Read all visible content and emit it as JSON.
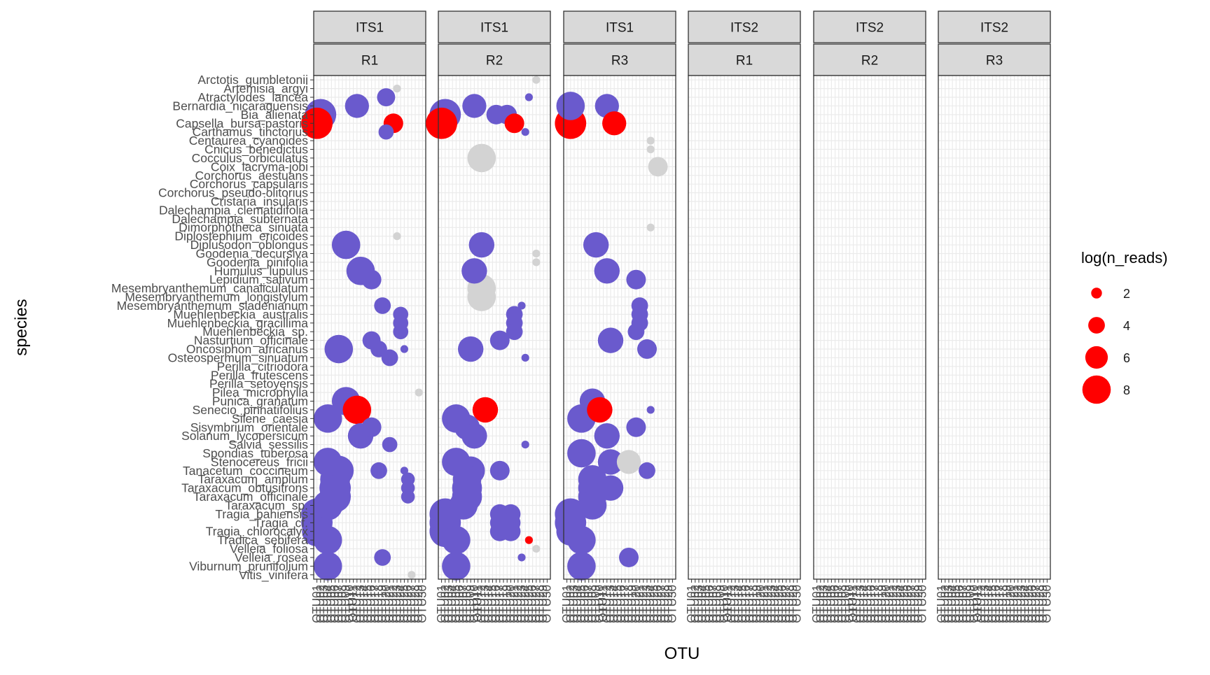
{
  "chart_data": {
    "type": "scatter",
    "xlabel": "OTU",
    "ylabel": "species",
    "legend": {
      "title": "log(n_reads)",
      "position": "right",
      "entries": [
        "2",
        "4",
        "6",
        "8"
      ],
      "values": [
        2,
        4,
        6,
        8
      ]
    },
    "grid": true,
    "colors": {
      "base": "#6a5acd",
      "highlight": "#ff0000",
      "faded": "#d3d3d3",
      "strip_fill": "#d9d9d9",
      "grid": "#ebebeb"
    },
    "facet_rows": [
      "ITS1",
      "ITS1",
      "ITS1",
      "ITS2",
      "ITS2",
      "ITS2"
    ],
    "facet_cols": [
      "R1",
      "R2",
      "R3",
      "R1",
      "R2",
      "R3"
    ],
    "species": [
      "Arctotis_gumbletonii",
      "Artemisia_argyi",
      "Atractylodes_lancea",
      "Bernardia_nicaraguensis",
      "Bia_alienata",
      "Capsella_bursa-pastoris",
      "Carthamus_tinctorius",
      "Centaurea_cyanoides",
      "Cnicus_benedictus",
      "Cocculus_orbiculatus",
      "Coix_lacryma-jobi",
      "Corchorus_aestuans",
      "Corchorus_capsularis",
      "Corchorus_pseudo-olitorius",
      "Cristaria_insularis",
      "Dalechampia_clematidifolia",
      "Dalechampia_subternata",
      "Dimorphotheca_sinuata",
      "Diplostephium_ericoides",
      "Diplusodon_oblongus",
      "Goodenia_decursiva",
      "Goodenia_pinifolia",
      "Humulus_lupulus",
      "Lepidium_sativum",
      "Mesembryanthemum_canaliculatum",
      "Mesembryanthemum_longistylum",
      "Mesembryanthemum_sladenianum",
      "Muehlenbeckia_australis",
      "Muehlenbeckia_gracillima",
      "Muehlenbeckia_sp.",
      "Nasturtium_officinale",
      "Oncosiphon_africanus",
      "Osteospermum_sinuatum",
      "Perilla_citriodora",
      "Perilla_frutescens",
      "Perilla_setoyensis",
      "Pilea_microphylla",
      "Punica_granatum",
      "Senecio_pinnatifolius",
      "Silene_caesia",
      "Sisymbrium_orientale",
      "Solanum_lycopersicum",
      "Salvia_sessilis",
      "Spondias_tuberosa",
      "Stenocereus_fricii",
      "Tanacetum_coccineum",
      "Taraxacum_amplum",
      "Taraxacum_obtusifrons",
      "Taraxacum_officinale",
      "Taraxacum_sp.",
      "Tragia_bahiensis",
      "Tragia_cf.",
      "Tragia_chlorocalyx",
      "Tradica_sebifera",
      "Velleia_foliosa",
      "Velleia_rosea",
      "Viburnum_prunifolium",
      "Vitis_vinifera"
    ],
    "otus": [
      "OTU01",
      "OTU02",
      "OTU03",
      "OTU04",
      "OTU05",
      "OTU06",
      "OTU07",
      "OTU08",
      "OTU09",
      "OTU10",
      "OTU11",
      "OTU12",
      "OTU13",
      "OTU14",
      "OTU15",
      "OTU16",
      "OTU17",
      "OTU18",
      "OTU19",
      "OTU20",
      "OTU21",
      "OTU22",
      "OTU23",
      "OTU24",
      "OTU25",
      "OTU26",
      "OTU27",
      "OTU28",
      "OTU29",
      "OTU30"
    ],
    "points_note": "each point: [species_index, otu_index(0-based), log_n_reads, color_class]",
    "panels": [
      {
        "points": [
          [
            1,
            22,
            1,
            "faded"
          ],
          [
            2,
            19,
            4.5,
            "base"
          ],
          [
            3,
            11,
            6.5,
            "base"
          ],
          [
            4,
            1,
            9,
            "base"
          ],
          [
            5,
            0,
            9,
            "highlight"
          ],
          [
            5,
            21,
            5,
            "highlight"
          ],
          [
            6,
            19,
            3.5,
            "base"
          ],
          [
            18,
            22,
            1,
            "faded"
          ],
          [
            19,
            8,
            8,
            "base"
          ],
          [
            22,
            12,
            8,
            "base"
          ],
          [
            23,
            15,
            5,
            "base"
          ],
          [
            26,
            18,
            4,
            "base"
          ],
          [
            27,
            23,
            3.5,
            "base"
          ],
          [
            28,
            23,
            3.5,
            "base"
          ],
          [
            29,
            23,
            3.5,
            "base"
          ],
          [
            30,
            15,
            4.5,
            "base"
          ],
          [
            31,
            6,
            8,
            "base"
          ],
          [
            31,
            17,
            4,
            "base"
          ],
          [
            31,
            24,
            1,
            "base"
          ],
          [
            32,
            20,
            4,
            "base"
          ],
          [
            36,
            28,
            1,
            "faded"
          ],
          [
            37,
            8,
            8,
            "base"
          ],
          [
            38,
            11,
            8,
            "highlight"
          ],
          [
            39,
            3,
            8,
            "base"
          ],
          [
            40,
            15,
            5,
            "base"
          ],
          [
            41,
            12,
            7,
            "base"
          ],
          [
            42,
            20,
            3.5,
            "base"
          ],
          [
            44,
            3,
            8,
            "base"
          ],
          [
            45,
            6,
            8.5,
            "base"
          ],
          [
            45,
            17,
            4,
            "base"
          ],
          [
            45,
            24,
            1,
            "base"
          ],
          [
            46,
            5,
            8.5,
            "base"
          ],
          [
            46,
            25,
            3,
            "base"
          ],
          [
            47,
            5,
            9,
            "base"
          ],
          [
            47,
            25,
            3,
            "base"
          ],
          [
            48,
            5,
            9,
            "base"
          ],
          [
            48,
            25,
            3,
            "base"
          ],
          [
            49,
            3,
            8.5,
            "base"
          ],
          [
            50,
            0,
            9,
            "base"
          ],
          [
            51,
            0,
            9,
            "base"
          ],
          [
            52,
            0,
            8.5,
            "base"
          ],
          [
            53,
            3,
            8,
            "base"
          ],
          [
            55,
            18,
            4,
            "base"
          ],
          [
            56,
            3,
            8,
            "base"
          ],
          [
            57,
            26,
            1,
            "faded"
          ]
        ]
      },
      {
        "points": [
          [
            0,
            26,
            1,
            "faded"
          ],
          [
            2,
            24,
            1,
            "base"
          ],
          [
            3,
            9,
            6.5,
            "base"
          ],
          [
            4,
            1,
            9,
            "base"
          ],
          [
            4,
            15,
            5,
            "base"
          ],
          [
            4,
            18,
            5,
            "base"
          ],
          [
            5,
            0,
            9,
            "highlight"
          ],
          [
            5,
            20,
            5,
            "highlight"
          ],
          [
            6,
            23,
            1,
            "base"
          ],
          [
            9,
            11,
            8,
            "faded"
          ],
          [
            19,
            11,
            7,
            "base"
          ],
          [
            20,
            26,
            1,
            "faded"
          ],
          [
            21,
            26,
            1,
            "faded"
          ],
          [
            22,
            9,
            7,
            "base"
          ],
          [
            24,
            11,
            8,
            "faded"
          ],
          [
            25,
            11,
            8,
            "faded"
          ],
          [
            26,
            22,
            1,
            "base"
          ],
          [
            27,
            20,
            4,
            "base"
          ],
          [
            28,
            20,
            4,
            "base"
          ],
          [
            29,
            20,
            4,
            "base"
          ],
          [
            30,
            16,
            5,
            "base"
          ],
          [
            31,
            8,
            7,
            "base"
          ],
          [
            32,
            23,
            1,
            "base"
          ],
          [
            38,
            12,
            7,
            "highlight"
          ],
          [
            39,
            4,
            8,
            "base"
          ],
          [
            40,
            7,
            7,
            "base"
          ],
          [
            41,
            9,
            7,
            "base"
          ],
          [
            42,
            23,
            1,
            "base"
          ],
          [
            44,
            4,
            8,
            "base"
          ],
          [
            45,
            8,
            8,
            "base"
          ],
          [
            45,
            16,
            5,
            "base"
          ],
          [
            46,
            7,
            8,
            "base"
          ],
          [
            47,
            7,
            8.5,
            "base"
          ],
          [
            48,
            7,
            8.5,
            "base"
          ],
          [
            49,
            6,
            8,
            "base"
          ],
          [
            50,
            1,
            9,
            "base"
          ],
          [
            50,
            16,
            5,
            "base"
          ],
          [
            50,
            19,
            5,
            "base"
          ],
          [
            51,
            1,
            9,
            "base"
          ],
          [
            51,
            16,
            5,
            "base"
          ],
          [
            51,
            19,
            5,
            "base"
          ],
          [
            52,
            1,
            9,
            "base"
          ],
          [
            52,
            16,
            5,
            "base"
          ],
          [
            52,
            19,
            5,
            "base"
          ],
          [
            53,
            4,
            8,
            "base"
          ],
          [
            53,
            24,
            1,
            "highlight"
          ],
          [
            54,
            26,
            1,
            "faded"
          ],
          [
            55,
            22,
            1,
            "base"
          ],
          [
            56,
            4,
            8,
            "base"
          ]
        ]
      },
      {
        "points": [
          [
            3,
            1,
            8,
            "base"
          ],
          [
            3,
            11,
            6.5,
            "base"
          ],
          [
            5,
            1,
            9,
            "highlight"
          ],
          [
            5,
            13,
            6.5,
            "highlight"
          ],
          [
            7,
            23,
            1,
            "faded"
          ],
          [
            8,
            23,
            1,
            "faded"
          ],
          [
            10,
            25,
            5,
            "faded"
          ],
          [
            17,
            23,
            1,
            "faded"
          ],
          [
            19,
            8,
            7,
            "base"
          ],
          [
            22,
            11,
            7,
            "base"
          ],
          [
            23,
            19,
            5,
            "base"
          ],
          [
            26,
            20,
            4,
            "base"
          ],
          [
            27,
            20,
            4,
            "base"
          ],
          [
            28,
            20,
            4,
            "base"
          ],
          [
            29,
            19,
            4,
            "base"
          ],
          [
            30,
            12,
            7,
            "base"
          ],
          [
            31,
            22,
            5,
            "base"
          ],
          [
            37,
            7,
            7,
            "base"
          ],
          [
            38,
            9,
            7,
            "highlight"
          ],
          [
            38,
            23,
            1,
            "base"
          ],
          [
            39,
            4,
            8,
            "base"
          ],
          [
            40,
            19,
            5,
            "base"
          ],
          [
            41,
            11,
            7,
            "base"
          ],
          [
            43,
            4,
            8,
            "base"
          ],
          [
            44,
            17,
            6.5,
            "faded"
          ],
          [
            44,
            12,
            7,
            "base"
          ],
          [
            45,
            22,
            4,
            "base"
          ],
          [
            46,
            7,
            8,
            "base"
          ],
          [
            47,
            7,
            8,
            "base"
          ],
          [
            47,
            12,
            7,
            "base"
          ],
          [
            48,
            7,
            8,
            "base"
          ],
          [
            49,
            7,
            8,
            "base"
          ],
          [
            50,
            1,
            9,
            "base"
          ],
          [
            51,
            1,
            9,
            "base"
          ],
          [
            52,
            1,
            8,
            "base"
          ],
          [
            53,
            4,
            8,
            "base"
          ],
          [
            55,
            17,
            5,
            "base"
          ],
          [
            56,
            4,
            8,
            "base"
          ]
        ]
      },
      {
        "points": []
      },
      {
        "points": []
      },
      {
        "points": []
      }
    ]
  }
}
